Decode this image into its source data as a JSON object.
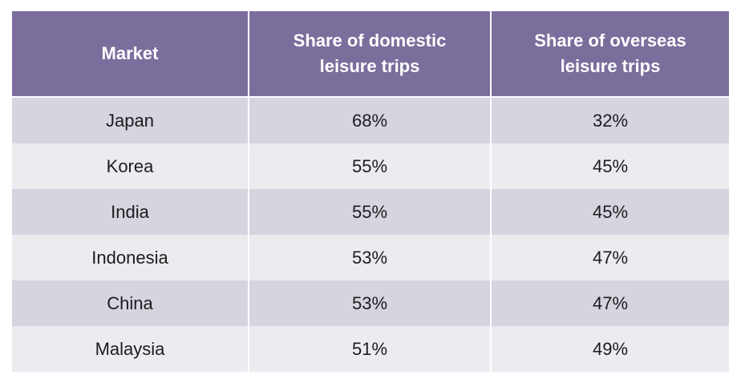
{
  "chart_data": {
    "type": "table",
    "columns": [
      "Market",
      "Share of domestic\nleisure trips",
      "Share of overseas\nleisure trips"
    ],
    "rows": [
      {
        "market": "Japan",
        "domestic": "68%",
        "overseas": "32%"
      },
      {
        "market": "Korea",
        "domestic": "55%",
        "overseas": "45%"
      },
      {
        "market": "India",
        "domestic": "55%",
        "overseas": "45%"
      },
      {
        "market": "Indonesia",
        "domestic": "53%",
        "overseas": "47%"
      },
      {
        "market": "China",
        "domestic": "53%",
        "overseas": "47%"
      },
      {
        "market": "Malaysia",
        "domestic": "51%",
        "overseas": "49%"
      }
    ]
  },
  "colors": {
    "header_bg": "#7b6e9c",
    "header_text": "#ffffff",
    "row_dark": "#d7d3df",
    "row_light": "#ecebf0"
  }
}
